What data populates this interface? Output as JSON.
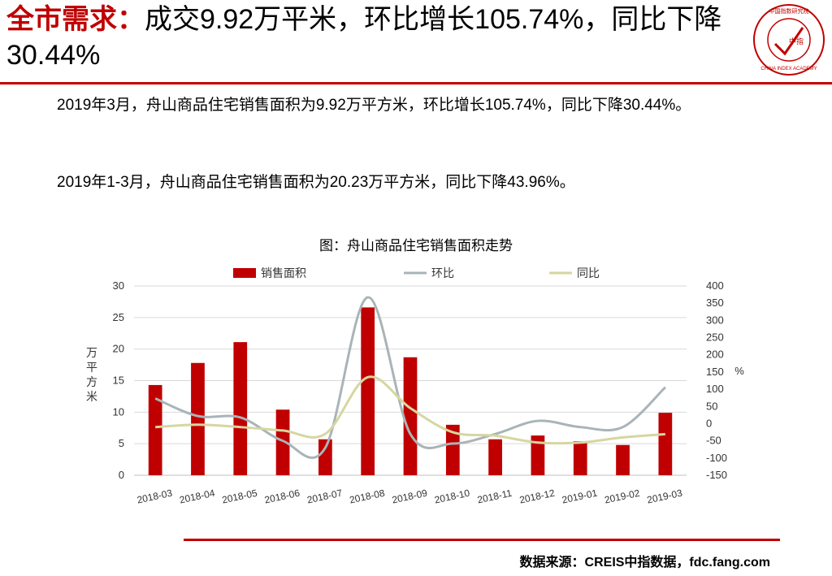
{
  "title": {
    "highlight": "全市需求：",
    "main": "成交9.92万平米，环比增长105.74%，同比下降30.44%"
  },
  "logo": {
    "text_top": "中国指数研究院",
    "text_bottom": "CHINA INDEX ACADEMY",
    "center": "中指"
  },
  "paragraphs": [
    "2019年3月，舟山商品住宅销售面积为9.92万平方米，环比增长105.74%，同比下降30.44%。",
    "2019年1-3月，舟山商品住宅销售面积为20.23万平方米，同比下降43.96%。"
  ],
  "source": "数据来源：CREIS中指数据，fdc.fang.com",
  "colors": {
    "accent": "#c00000",
    "bar": "#c00000",
    "mom": "#a9b4b8",
    "yoy": "#d6d6a0"
  },
  "chart_data": {
    "type": "bar",
    "title": "图：舟山商品住宅销售面积走势",
    "categories": [
      "2018-03",
      "2018-04",
      "2018-05",
      "2018-06",
      "2018-07",
      "2018-08",
      "2018-09",
      "2018-10",
      "2018-11",
      "2018-12",
      "2019-01",
      "2019-02",
      "2019-03"
    ],
    "ylabel": "万平方米",
    "y2label": "%",
    "ylim": [
      0,
      30
    ],
    "yticks": [
      0,
      5,
      10,
      15,
      20,
      25,
      30
    ],
    "y2lim": [
      -150,
      400
    ],
    "y2ticks": [
      -150,
      -100,
      -50,
      0,
      50,
      100,
      150,
      200,
      250,
      300,
      350,
      400
    ],
    "legend_position": "top",
    "series": [
      {
        "name": "销售面积",
        "type": "bar",
        "axis": "left",
        "values": [
          14.3,
          17.8,
          21.1,
          10.4,
          5.7,
          26.6,
          18.7,
          8.0,
          5.7,
          6.3,
          5.4,
          4.8,
          9.9
        ]
      },
      {
        "name": "环比",
        "type": "line",
        "axis": "right",
        "values": [
          73,
          22,
          18,
          -50,
          -70,
          367,
          -30,
          -58,
          -30,
          8,
          -10,
          -10,
          105.74
        ]
      },
      {
        "name": "同比",
        "type": "line",
        "axis": "right",
        "values": [
          -10,
          -3,
          -10,
          -20,
          -30,
          135,
          45,
          -25,
          -35,
          -55,
          -55,
          -40,
          -30.44
        ]
      }
    ]
  }
}
